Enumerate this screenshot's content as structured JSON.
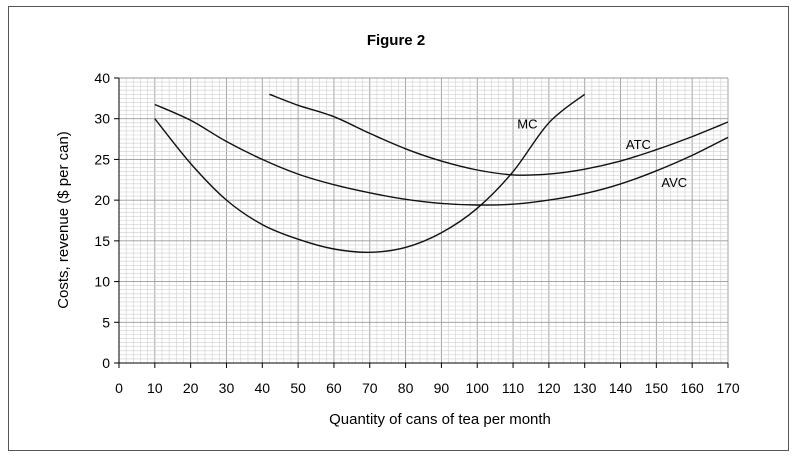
{
  "chart_data": {
    "type": "line",
    "title": "Figure 2",
    "xlabel": "Quantity of cans of tea per month",
    "ylabel": "Costs, revenue ($ per can)",
    "xlim": [
      0,
      170
    ],
    "ylim": [
      0,
      40
    ],
    "xticks": [
      "0",
      "10",
      "20",
      "30",
      "40",
      "50",
      "60",
      "70",
      "80",
      "90",
      "100",
      "110",
      "120",
      "130",
      "140",
      "150",
      "160",
      "170"
    ],
    "yticks": [
      "0",
      "5",
      "10",
      "15",
      "20",
      "25",
      "30",
      "40"
    ],
    "grid": true,
    "series": [
      {
        "name": "MC",
        "x": [
          10,
          20,
          30,
          40,
          50,
          60,
          70,
          80,
          90,
          100,
          110,
          120,
          130
        ],
        "y": [
          30,
          24.5,
          20,
          17,
          15.2,
          14,
          13.6,
          14.2,
          16,
          19,
          23.5,
          29.5,
          36
        ]
      },
      {
        "name": "ATC",
        "x": [
          42,
          50,
          60,
          70,
          80,
          90,
          100,
          110,
          120,
          130,
          140,
          150,
          160,
          170
        ],
        "y": [
          36,
          33.3,
          30.5,
          28.2,
          26.3,
          24.8,
          23.7,
          23.1,
          23.2,
          23.8,
          24.8,
          26.2,
          27.8,
          29.6
        ]
      },
      {
        "name": "AVC",
        "x": [
          10,
          20,
          30,
          40,
          50,
          60,
          70,
          80,
          90,
          100,
          110,
          120,
          130,
          140,
          150,
          160,
          170
        ],
        "y": [
          33.5,
          29.8,
          27.2,
          25,
          23.2,
          21.9,
          20.9,
          20.1,
          19.6,
          19.4,
          19.5,
          20,
          20.8,
          22,
          23.6,
          25.5,
          27.7
        ]
      }
    ],
    "labels": [
      {
        "text": "MC",
        "x": 114,
        "y": 28.8
      },
      {
        "text": "ATC",
        "x": 145,
        "y": 26.3
      },
      {
        "text": "AVC",
        "x": 155,
        "y": 21.6
      }
    ]
  }
}
